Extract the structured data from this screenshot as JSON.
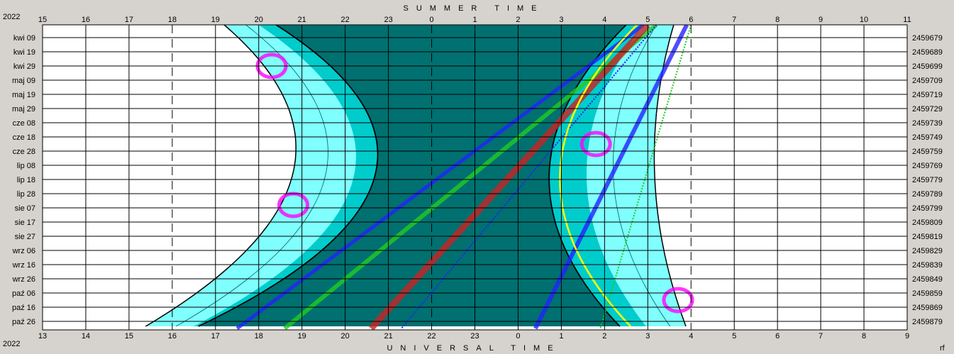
{
  "chart_data": {
    "type": "area",
    "year_top": "2022",
    "year_bottom": "2022",
    "title_top": "SUMMER TIME",
    "title_bottom": "UNIVERSAL TIME",
    "corner_note": "rf",
    "top_ticks": [
      "15",
      "16",
      "17",
      "18",
      "19",
      "20",
      "21",
      "22",
      "23",
      "0",
      "1",
      "2",
      "3",
      "4",
      "5",
      "6",
      "7",
      "8",
      "9",
      "10",
      "11"
    ],
    "bottom_ticks": [
      "13",
      "14",
      "15",
      "16",
      "17",
      "18",
      "19",
      "20",
      "21",
      "22",
      "23",
      "0",
      "1",
      "2",
      "3",
      "4",
      "5",
      "6",
      "7",
      "8",
      "9"
    ],
    "dates": [
      "kwi 09",
      "kwi 19",
      "kwi 29",
      "maj 09",
      "maj 19",
      "maj 29",
      "cze 08",
      "cze 18",
      "cze 28",
      "lip 08",
      "lip 18",
      "lip 28",
      "sie 07",
      "sie 17",
      "sie 27",
      "wrz 06",
      "wrz 16",
      "wrz 26",
      "paź 06",
      "paź 16",
      "paź 26"
    ],
    "julian_days": [
      "2459679",
      "2459689",
      "2459699",
      "2459709",
      "2459719",
      "2459729",
      "2459739",
      "2459749",
      "2459759",
      "2459769",
      "2459779",
      "2459789",
      "2459799",
      "2459809",
      "2459819",
      "2459829",
      "2459839",
      "2459849",
      "2459859",
      "2459869",
      "2459879"
    ],
    "dashed_hours_summer": [
      18,
      0,
      6
    ],
    "colors": {
      "background": "#ffffff",
      "night": "#007070",
      "astronomical_twilight": "#00cccc",
      "nautical_twilight": "#80ffff",
      "moon": "#ff00ff",
      "sun_marker": "#ffff00",
      "mars": "#cc2222",
      "jupiter": "#22cc22",
      "saturn": "#2222ff"
    }
  }
}
